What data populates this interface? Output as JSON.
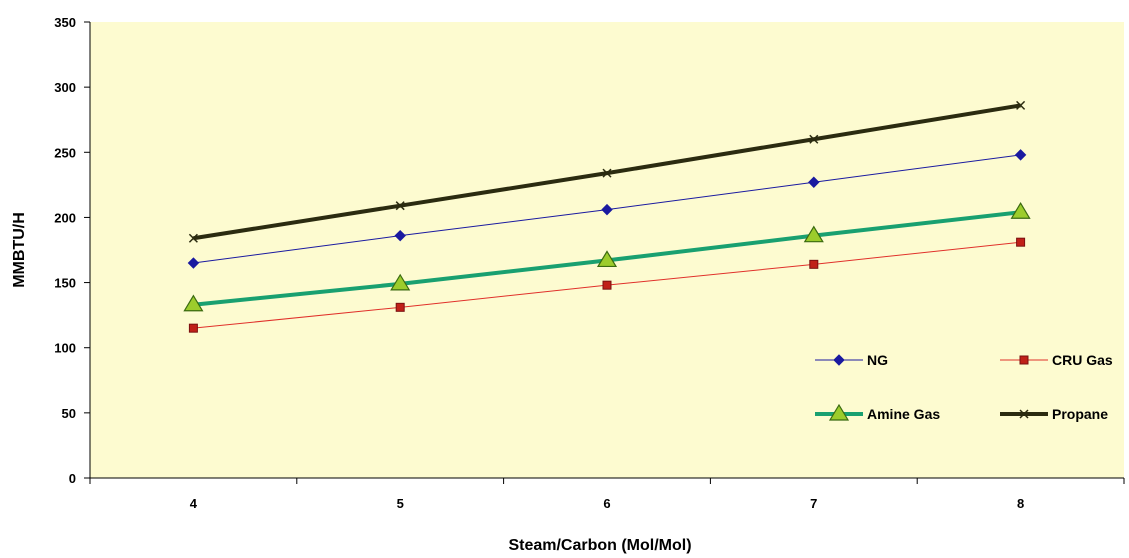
{
  "chart_data": {
    "type": "line",
    "title": "",
    "xlabel": "Steam/Carbon (Mol/Mol)",
    "ylabel": "MMBTU/H",
    "x": [
      4,
      5,
      6,
      7,
      8
    ],
    "xlim": [
      3.5,
      8.5
    ],
    "ylim": [
      0,
      350
    ],
    "yticks": [
      0,
      50,
      100,
      150,
      200,
      250,
      300,
      350
    ],
    "grid": false,
    "legend_position": "bottom-right",
    "plot_background": "#fdfbd0",
    "series": [
      {
        "name": "NG",
        "values": [
          165,
          186,
          206,
          227,
          248
        ],
        "color": "#1a1aa0",
        "marker": "diamond",
        "line_width": 1
      },
      {
        "name": "CRU Gas",
        "values": [
          115,
          131,
          148,
          164,
          181
        ],
        "color": "#e0302a",
        "marker": "square",
        "marker_color": "#c02018",
        "line_width": 1
      },
      {
        "name": "Amine Gas",
        "values": [
          133,
          149,
          167,
          186,
          204
        ],
        "color": "#19a070",
        "marker": "triangle",
        "marker_color": "#9ccc2c",
        "line_width": 4
      },
      {
        "name": "Propane",
        "values": [
          184,
          209,
          234,
          260,
          286
        ],
        "color": "#2b2b10",
        "marker": "x",
        "line_width": 4
      }
    ]
  }
}
